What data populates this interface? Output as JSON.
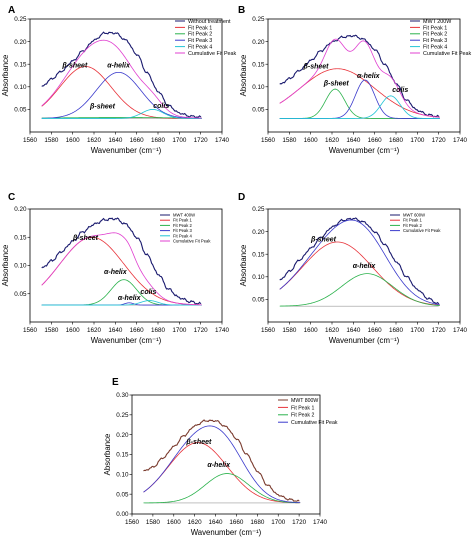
{
  "chart_data": [
    {
      "panel": "A",
      "type": "line",
      "xlabel": "Wavenumber (cm⁻¹)",
      "ylabel": "Absorbance",
      "xlim": [
        1560,
        1740
      ],
      "ylim": [
        0.0,
        0.25
      ],
      "xticks": [
        1560,
        1580,
        1600,
        1620,
        1640,
        1660,
        1680,
        1700,
        1720,
        1740
      ],
      "yticks": [
        0.05,
        0.1,
        0.15,
        0.2,
        0.25
      ],
      "ytick_labels": [
        "0.05",
        "0.10",
        "0.15",
        "0.20",
        "0.25"
      ],
      "baseline": 0.03,
      "legend": [
        "Without treatment",
        "Fit Peak 1",
        "Fit Peak 2",
        "Fit Peak 3",
        "Fit Peak 4",
        "Cumulative Fit Peak"
      ],
      "series": [
        {
          "name": "Without treatment",
          "color": "#1a1a6e",
          "kind": "data",
          "x": [
            1571,
            1580,
            1590,
            1600,
            1610,
            1620,
            1630,
            1640,
            1650,
            1660,
            1670,
            1680,
            1690,
            1700,
            1710,
            1720
          ],
          "values": [
            0.1,
            0.117,
            0.135,
            0.157,
            0.18,
            0.203,
            0.219,
            0.219,
            0.203,
            0.172,
            0.13,
            0.09,
            0.058,
            0.042,
            0.035,
            0.033
          ]
        },
        {
          "name": "Fit Peak 1",
          "color": "#e8333a",
          "center": 1612,
          "height": 0.115,
          "width": 24
        },
        {
          "name": "Fit Peak 2",
          "color": "#2bb24c",
          "center": 1645,
          "height": 0.002,
          "width": 60
        },
        {
          "name": "Fit Peak 3",
          "color": "#3b3bcc",
          "center": 1643,
          "height": 0.102,
          "width": 21
        },
        {
          "name": "Fit Peak 4",
          "color": "#22c4d6",
          "center": 1675,
          "height": 0.02,
          "width": 10
        },
        {
          "name": "Cumulative Fit Peak",
          "color": "#e040d0",
          "kind": "sum"
        }
      ],
      "annotations": [
        "β-sheet",
        "α-helix",
        "β-sheet",
        "colis"
      ]
    },
    {
      "panel": "B",
      "type": "line",
      "xlabel": "Wavenumber (cm⁻¹)",
      "ylabel": "Absorbance",
      "xlim": [
        1560,
        1740
      ],
      "ylim": [
        0.0,
        0.25
      ],
      "xticks": [
        1560,
        1580,
        1600,
        1620,
        1640,
        1660,
        1680,
        1700,
        1720,
        1740
      ],
      "yticks": [
        0.05,
        0.1,
        0.15,
        0.2,
        0.25
      ],
      "ytick_labels": [
        "0.05",
        "0.10",
        "0.15",
        "0.20",
        "0.25"
      ],
      "baseline": 0.03,
      "legend": [
        "MWT 200W",
        "Fit Peak 1",
        "Fit Peak 2",
        "Fit Peak 3",
        "Fit Peak 4",
        "Cumulative Fit Peak"
      ],
      "series": [
        {
          "name": "MWT 200W",
          "color": "#1a1a6e",
          "kind": "data",
          "x": [
            1571,
            1580,
            1590,
            1600,
            1610,
            1620,
            1630,
            1640,
            1650,
            1660,
            1670,
            1680,
            1690,
            1700,
            1710,
            1720
          ],
          "values": [
            0.105,
            0.118,
            0.137,
            0.158,
            0.18,
            0.199,
            0.21,
            0.213,
            0.205,
            0.183,
            0.148,
            0.108,
            0.07,
            0.048,
            0.038,
            0.034
          ]
        },
        {
          "name": "Fit Peak 1",
          "color": "#e8333a",
          "center": 1625,
          "height": 0.11,
          "width": 35
        },
        {
          "name": "Fit Peak 2",
          "color": "#2bb24c",
          "center": 1623,
          "height": 0.065,
          "width": 9
        },
        {
          "name": "Fit Peak 3",
          "color": "#3b3bcc",
          "center": 1651,
          "height": 0.085,
          "width": 9
        },
        {
          "name": "Fit Peak 4",
          "color": "#22c4d6",
          "center": 1675,
          "height": 0.05,
          "width": 9
        },
        {
          "name": "Cumulative Fit Peak",
          "color": "#e040d0",
          "kind": "sum"
        }
      ],
      "annotations": [
        "β-sheet",
        "α-helix",
        "β-sheet",
        "colis"
      ]
    },
    {
      "panel": "C",
      "type": "line",
      "xlabel": "Wavenumber (cm⁻¹)",
      "ylabel": "Absorbance",
      "xlim": [
        1560,
        1740
      ],
      "ylim": [
        0.0,
        0.2
      ],
      "xticks": [
        1560,
        1580,
        1600,
        1620,
        1640,
        1660,
        1680,
        1700,
        1720,
        1740
      ],
      "yticks": [
        0.05,
        0.1,
        0.15,
        0.2
      ],
      "ytick_labels": [
        "0.05",
        "0.10",
        "0.15",
        "0.20"
      ],
      "baseline": 0.03,
      "legend": [
        "MWT 400W",
        "Fit Peak 1",
        "Fit Peak 2",
        "Fit Peak 3",
        "Fit Peak 4",
        "Cumulative Fit Peak"
      ],
      "series": [
        {
          "name": "MWT 400W",
          "color": "#1a1a6e",
          "kind": "data",
          "x": [
            1571,
            1580,
            1590,
            1600,
            1610,
            1620,
            1630,
            1640,
            1650,
            1660,
            1670,
            1680,
            1690,
            1700,
            1710,
            1720
          ],
          "values": [
            0.095,
            0.108,
            0.125,
            0.143,
            0.16,
            0.173,
            0.181,
            0.183,
            0.173,
            0.15,
            0.118,
            0.085,
            0.058,
            0.043,
            0.036,
            0.032
          ]
        },
        {
          "name": "Fit Peak 1",
          "color": "#e8333a",
          "center": 1618,
          "height": 0.12,
          "width": 30
        },
        {
          "name": "Fit Peak 2",
          "color": "#2bb24c",
          "center": 1648,
          "height": 0.045,
          "width": 12
        },
        {
          "name": "Fit Peak 3",
          "color": "#3b3bcc",
          "center": 1653,
          "height": 0.004,
          "width": 4
        },
        {
          "name": "Fit Peak 4",
          "color": "#22c4d6",
          "center": 1672,
          "height": 0.008,
          "width": 8
        },
        {
          "name": "Cumulative Fit Peak",
          "color": "#e040d0",
          "kind": "sum"
        }
      ],
      "annotations": [
        "β-sheet",
        "α-helix",
        "α-helix",
        "colis"
      ]
    },
    {
      "panel": "D",
      "type": "line",
      "xlabel": "Wavenumber (cm⁻¹)",
      "ylabel": "Absorbance",
      "xlim": [
        1560,
        1740
      ],
      "ylim": [
        0.0,
        0.25
      ],
      "xticks": [
        1560,
        1580,
        1600,
        1620,
        1640,
        1660,
        1680,
        1700,
        1720,
        1740
      ],
      "yticks": [
        0.05,
        0.1,
        0.15,
        0.2,
        0.25
      ],
      "ytick_labels": [
        "0.05",
        "0.10",
        "0.15",
        "0.20",
        "0.25"
      ],
      "baseline": 0.035,
      "legend": [
        "MWT 600W",
        "Fit Peak 1",
        "Fit Peak 2",
        "Cumulative Fit Peak"
      ],
      "series": [
        {
          "name": "MWT 600W",
          "color": "#1a1a6e",
          "kind": "data",
          "x": [
            1571,
            1580,
            1590,
            1600,
            1610,
            1620,
            1630,
            1640,
            1650,
            1660,
            1670,
            1680,
            1690,
            1700,
            1710,
            1720
          ],
          "values": [
            0.092,
            0.112,
            0.138,
            0.163,
            0.188,
            0.21,
            0.225,
            0.229,
            0.221,
            0.2,
            0.17,
            0.134,
            0.1,
            0.072,
            0.052,
            0.04
          ]
        },
        {
          "name": "Fit Peak 1",
          "color": "#e8333a",
          "center": 1625,
          "height": 0.142,
          "width": 33
        },
        {
          "name": "Fit Peak 2",
          "color": "#2bb24c",
          "center": 1653,
          "height": 0.072,
          "width": 24
        },
        {
          "name": "Cumulative Fit Peak",
          "color": "#3b3bcc",
          "kind": "sum"
        }
      ],
      "annotations": [
        "β-sheet",
        "α-helix"
      ]
    },
    {
      "panel": "E",
      "type": "line",
      "xlabel": "Wavenumber (cm⁻¹)",
      "ylabel": "Absorbance",
      "xlim": [
        1560,
        1740
      ],
      "ylim": [
        0.0,
        0.3
      ],
      "xticks": [
        1560,
        1580,
        1600,
        1620,
        1640,
        1660,
        1680,
        1700,
        1720,
        1740
      ],
      "yticks": [
        0.0,
        0.05,
        0.1,
        0.15,
        0.2,
        0.25,
        0.3
      ],
      "ytick_labels": [
        "0.00",
        "0.05",
        "0.10",
        "0.15",
        "0.20",
        "0.25",
        "0.30"
      ],
      "baseline": 0.028,
      "legend": [
        "MWT 800W",
        "Fit Peak 1",
        "Fit Peak 2",
        "Cumulative Fit Peak"
      ],
      "series": [
        {
          "name": "MWT 800W",
          "color": "#7a3b2e",
          "kind": "data",
          "x": [
            1571,
            1580,
            1590,
            1600,
            1610,
            1620,
            1630,
            1640,
            1650,
            1660,
            1670,
            1680,
            1690,
            1700,
            1710,
            1720
          ],
          "values": [
            0.108,
            0.118,
            0.142,
            0.17,
            0.198,
            0.222,
            0.235,
            0.235,
            0.22,
            0.19,
            0.15,
            0.108,
            0.072,
            0.048,
            0.037,
            0.032
          ]
        },
        {
          "name": "Fit Peak 1",
          "color": "#e8333a",
          "center": 1623,
          "height": 0.152,
          "width": 28
        },
        {
          "name": "Fit Peak 2",
          "color": "#2bb24c",
          "center": 1651,
          "height": 0.074,
          "width": 21
        },
        {
          "name": "Cumulative Fit Peak",
          "color": "#3b3bcc",
          "kind": "sum"
        }
      ],
      "annotations": [
        "β-sheet",
        "α-helix"
      ]
    }
  ]
}
